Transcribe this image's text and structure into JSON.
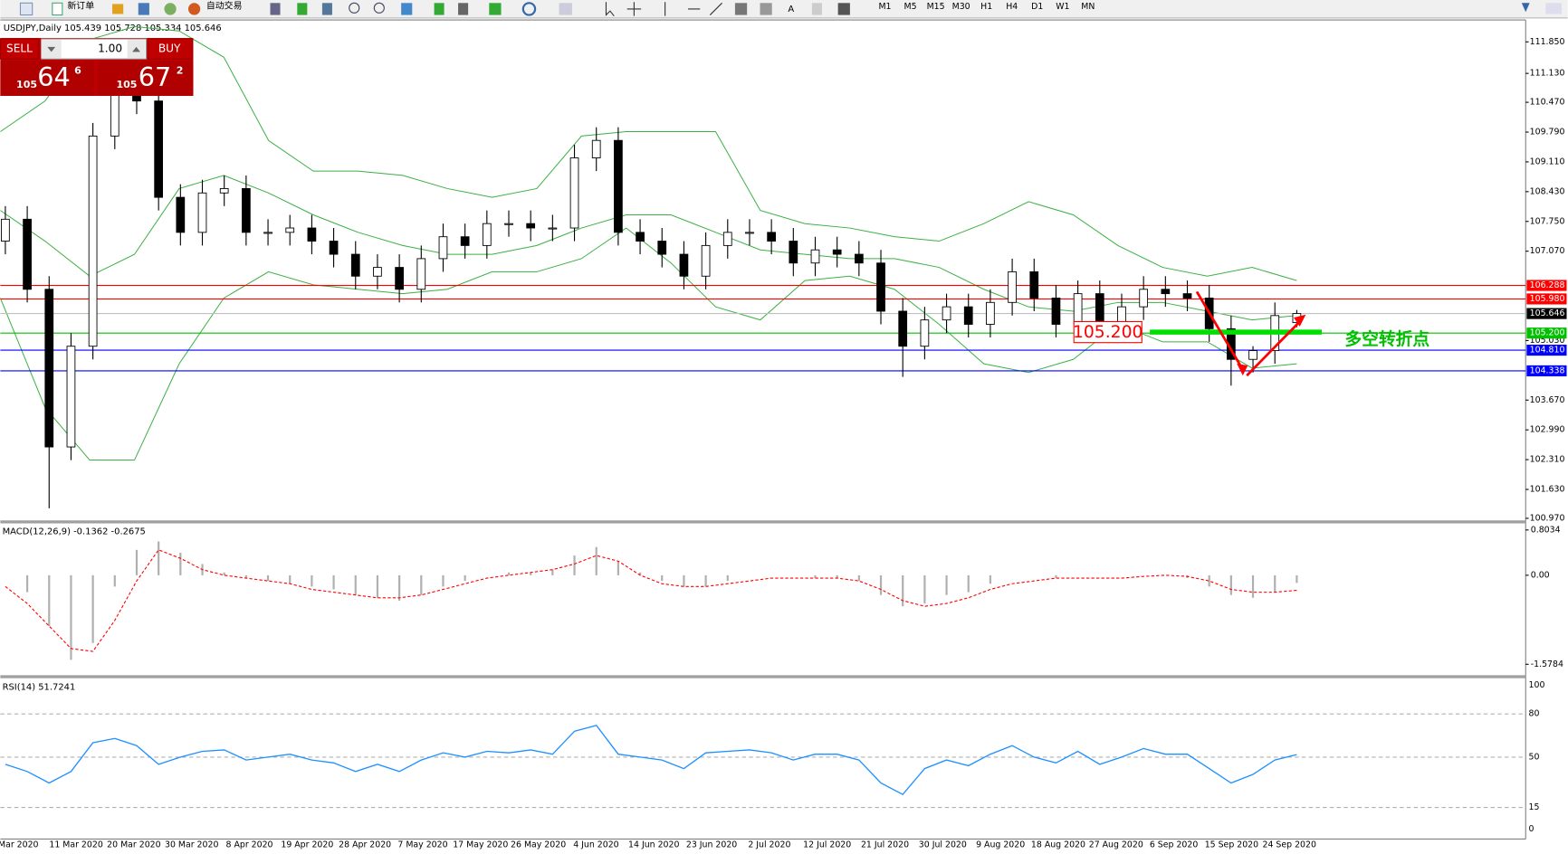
{
  "toolbar": {
    "new_order": "新订单",
    "auto_trading": "自动交易",
    "timeframes": [
      "M1",
      "M5",
      "M15",
      "M30",
      "H1",
      "H4",
      "D1",
      "W1",
      "MN"
    ]
  },
  "trade_panel": {
    "sell": "SELL",
    "lot": "1.00",
    "buy": "BUY",
    "bid": [
      "105",
      "64",
      "6"
    ],
    "ask": [
      "105",
      "67",
      "2"
    ]
  },
  "chart_data": [
    {
      "type": "candlestick",
      "title": "USDJPY,Daily  105.439 105.728 105.334 105.646",
      "categories": [
        "Mar 2020",
        "11 Mar 2020",
        "20 Mar 2020",
        "30 Mar 2020",
        "8 Apr 2020",
        "19 Apr 2020",
        "28 Apr 2020",
        "7 May 2020",
        "17 May 2020",
        "26 May 2020",
        "4 Jun 2020",
        "14 Jun 2020",
        "23 Jun 2020",
        "2 Jul 2020",
        "12 Jul 2020",
        "21 Jul 2020",
        "30 Jul 2020",
        "9 Aug 2020",
        "18 Aug 2020",
        "27 Aug 2020",
        "6 Sep 2020",
        "15 Sep 2020",
        "24 Sep 2020"
      ],
      "open": [
        107.3,
        107.8,
        106.2,
        102.6,
        104.9,
        109.7,
        111.0,
        110.5,
        108.3,
        107.5,
        108.4,
        108.5,
        107.5,
        107.5,
        107.6,
        107.3,
        107.0,
        106.5,
        106.7,
        106.2,
        106.9,
        107.4,
        107.2,
        107.7,
        107.7,
        107.6,
        107.6,
        109.2,
        109.6,
        107.5,
        107.3,
        107.0,
        106.5,
        107.2,
        107.5,
        107.5,
        107.3,
        106.8,
        107.1,
        107.0,
        106.8,
        105.7,
        104.9,
        105.5,
        105.8,
        105.4,
        105.9,
        106.6,
        106.0,
        105.4,
        106.1,
        105.4,
        105.8,
        106.2,
        106.1,
        106.0,
        105.3,
        104.6,
        104.8,
        105.439
      ],
      "high": [
        108.1,
        108.1,
        106.5,
        105.2,
        110.0,
        111.7,
        111.3,
        110.8,
        108.6,
        108.7,
        108.8,
        108.8,
        107.8,
        107.9,
        107.9,
        107.6,
        107.3,
        107.0,
        107.0,
        107.2,
        107.7,
        107.7,
        108.0,
        108.0,
        108.0,
        107.9,
        109.5,
        109.9,
        109.9,
        107.8,
        107.6,
        107.3,
        107.5,
        107.8,
        107.8,
        107.8,
        107.6,
        107.4,
        107.4,
        107.3,
        107.1,
        106.0,
        105.8,
        106.1,
        106.1,
        106.2,
        106.9,
        106.9,
        106.3,
        106.4,
        106.4,
        106.1,
        106.5,
        106.5,
        106.4,
        106.3,
        105.6,
        104.9,
        105.9,
        105.728
      ],
      "low": [
        107.0,
        105.9,
        101.2,
        102.3,
        104.6,
        109.4,
        110.2,
        108.0,
        107.2,
        107.2,
        108.1,
        107.2,
        107.2,
        107.2,
        107.0,
        106.7,
        106.2,
        106.2,
        105.9,
        105.9,
        106.6,
        106.9,
        106.9,
        107.4,
        107.3,
        107.3,
        107.3,
        108.9,
        107.2,
        107.0,
        106.7,
        106.2,
        106.2,
        106.9,
        107.2,
        107.0,
        106.5,
        106.5,
        106.7,
        106.5,
        105.4,
        104.2,
        104.6,
        105.2,
        105.1,
        105.1,
        105.6,
        105.7,
        105.1,
        105.1,
        105.1,
        105.1,
        105.5,
        105.8,
        105.7,
        105.0,
        104.0,
        104.3,
        104.5,
        105.334
      ],
      "close": [
        107.8,
        106.2,
        102.6,
        104.9,
        109.7,
        111.0,
        110.5,
        108.3,
        107.5,
        108.4,
        108.5,
        107.5,
        107.5,
        107.6,
        107.3,
        107.0,
        106.5,
        106.7,
        106.2,
        106.9,
        107.4,
        107.2,
        107.7,
        107.7,
        107.6,
        107.6,
        109.2,
        109.6,
        107.5,
        107.3,
        107.0,
        106.5,
        107.2,
        107.5,
        107.5,
        107.3,
        106.8,
        107.1,
        107.0,
        106.8,
        105.7,
        104.9,
        105.5,
        105.8,
        105.4,
        105.9,
        106.6,
        106.0,
        105.4,
        106.1,
        105.4,
        105.8,
        106.2,
        106.1,
        106.0,
        105.3,
        104.6,
        104.8,
        105.6,
        105.646
      ],
      "bands": {
        "color": "#3cb043",
        "upper": [
          109.8,
          110.5,
          111.9,
          112.2,
          112.1,
          111.5,
          109.6,
          108.9,
          108.9,
          108.8,
          108.5,
          108.3,
          108.5,
          109.7,
          109.8,
          109.8,
          109.8,
          108.0,
          107.7,
          107.6,
          107.4,
          107.3,
          107.7,
          108.2,
          107.9,
          107.2,
          106.7,
          106.5,
          106.7,
          106.4
        ],
        "middle": [
          108.0,
          107.3,
          106.5,
          107.0,
          108.5,
          108.8,
          108.4,
          107.9,
          107.5,
          107.2,
          107.0,
          107.0,
          107.2,
          107.6,
          107.9,
          107.9,
          107.5,
          107.1,
          107.0,
          106.9,
          106.9,
          106.7,
          106.2,
          105.8,
          105.7,
          105.9,
          105.9,
          105.7,
          105.5,
          105.6
        ],
        "lower": [
          106.0,
          103.5,
          102.3,
          102.3,
          104.5,
          106.0,
          106.6,
          106.3,
          106.2,
          106.1,
          106.2,
          106.6,
          106.6,
          106.9,
          107.6,
          106.8,
          105.8,
          105.5,
          106.4,
          106.5,
          106.2,
          105.4,
          104.5,
          104.3,
          104.6,
          105.4,
          105.0,
          105.0,
          104.4,
          104.5
        ]
      },
      "levels": [
        {
          "value": 106.288,
          "label": "106.288",
          "color": "#ff0000",
          "box_color": "#ff0000"
        },
        {
          "value": 105.98,
          "label": "105.980",
          "color": "#ff0000",
          "box_color": "#ff0000"
        },
        {
          "value": 105.646,
          "label": "105.646",
          "color": "#c0c0c0",
          "box_color": "#000000"
        },
        {
          "value": 105.2,
          "label": "105.200",
          "color": "#00c000",
          "box_color": "#00c000"
        },
        {
          "value": 104.81,
          "label": "104.810",
          "color": "#0000ff",
          "box_color": "#0000ff"
        },
        {
          "value": 104.338,
          "label": "104.338",
          "color": "#0000ff",
          "box_color": "#0000ff"
        }
      ],
      "annotations": [
        "105.200",
        "多空转折点"
      ],
      "ylim": [
        100.9,
        112.35
      ],
      "yticks": [
        {
          "value": 100.97,
          "label": "100.970"
        },
        {
          "value": 101.63,
          "label": "101.630"
        },
        {
          "value": 102.31,
          "label": "102.310"
        },
        {
          "value": 102.99,
          "label": "102.990"
        },
        {
          "value": 103.67,
          "label": "103.670"
        },
        {
          "value": 105.03,
          "label": "105.030"
        },
        {
          "value": 107.07,
          "label": "107.070"
        },
        {
          "value": 107.75,
          "label": "107.750"
        },
        {
          "value": 108.43,
          "label": "108.430"
        },
        {
          "value": 109.11,
          "label": "109.110"
        },
        {
          "value": 109.79,
          "label": "109.790"
        },
        {
          "value": 110.47,
          "label": "110.470"
        },
        {
          "value": 111.13,
          "label": "111.130"
        },
        {
          "value": 111.85,
          "label": "111.850"
        }
      ]
    },
    {
      "type": "macd",
      "title": "MACD(12,26,9) -0.1362 -0.2675",
      "color": "#b0b0b0",
      "signal_color": "#ff0000",
      "histogram": [
        0.0,
        -0.3,
        -0.9,
        -1.5,
        -1.2,
        -0.2,
        0.45,
        0.6,
        0.4,
        0.2,
        0.05,
        -0.05,
        -0.1,
        -0.15,
        -0.2,
        -0.25,
        -0.35,
        -0.4,
        -0.45,
        -0.35,
        -0.2,
        -0.1,
        0.0,
        0.05,
        0.05,
        0.1,
        0.35,
        0.5,
        0.25,
        0.05,
        -0.1,
        -0.2,
        -0.2,
        -0.1,
        0.0,
        0.0,
        0.0,
        -0.05,
        -0.05,
        -0.1,
        -0.35,
        -0.55,
        -0.5,
        -0.35,
        -0.3,
        -0.15,
        0.0,
        0.0,
        -0.05,
        0.0,
        0.0,
        0.0,
        0.0,
        0.0,
        -0.05,
        -0.2,
        -0.35,
        -0.4,
        -0.3,
        -0.1362
      ],
      "signal": [
        -0.2,
        -0.5,
        -0.9,
        -1.3,
        -1.35,
        -0.8,
        -0.1,
        0.45,
        0.3,
        0.1,
        0.0,
        -0.05,
        -0.1,
        -0.15,
        -0.25,
        -0.3,
        -0.35,
        -0.4,
        -0.4,
        -0.35,
        -0.25,
        -0.15,
        -0.05,
        0.0,
        0.05,
        0.1,
        0.2,
        0.35,
        0.25,
        0.0,
        -0.15,
        -0.2,
        -0.2,
        -0.15,
        -0.1,
        -0.05,
        -0.05,
        -0.05,
        -0.05,
        -0.1,
        -0.25,
        -0.45,
        -0.55,
        -0.5,
        -0.4,
        -0.25,
        -0.15,
        -0.1,
        -0.05,
        -0.05,
        -0.05,
        -0.05,
        -0.02,
        0.0,
        -0.02,
        -0.1,
        -0.25,
        -0.3,
        -0.3,
        -0.2675
      ],
      "ylim": [
        -1.79,
        0.92
      ],
      "yticks": [
        0.8034,
        {
          "value": 0,
          "label": "0.00"
        },
        -1.5784
      ]
    },
    {
      "type": "line",
      "title": "RSI(14) 51.7241",
      "color": "#1e90ff",
      "values": [
        45,
        40,
        32,
        40,
        60,
        63,
        58,
        45,
        50,
        54,
        55,
        48,
        50,
        52,
        48,
        46,
        40,
        45,
        40,
        48,
        53,
        50,
        54,
        53,
        55,
        52,
        68,
        72,
        52,
        50,
        48,
        42,
        53,
        54,
        55,
        53,
        48,
        52,
        52,
        48,
        32,
        24,
        42,
        48,
        44,
        52,
        58,
        50,
        46,
        54,
        45,
        50,
        56,
        52,
        52,
        42,
        32,
        38,
        48,
        51.7241
      ],
      "ylim": [
        0,
        100
      ],
      "yticks": [
        100,
        80,
        50,
        15,
        0
      ]
    }
  ]
}
